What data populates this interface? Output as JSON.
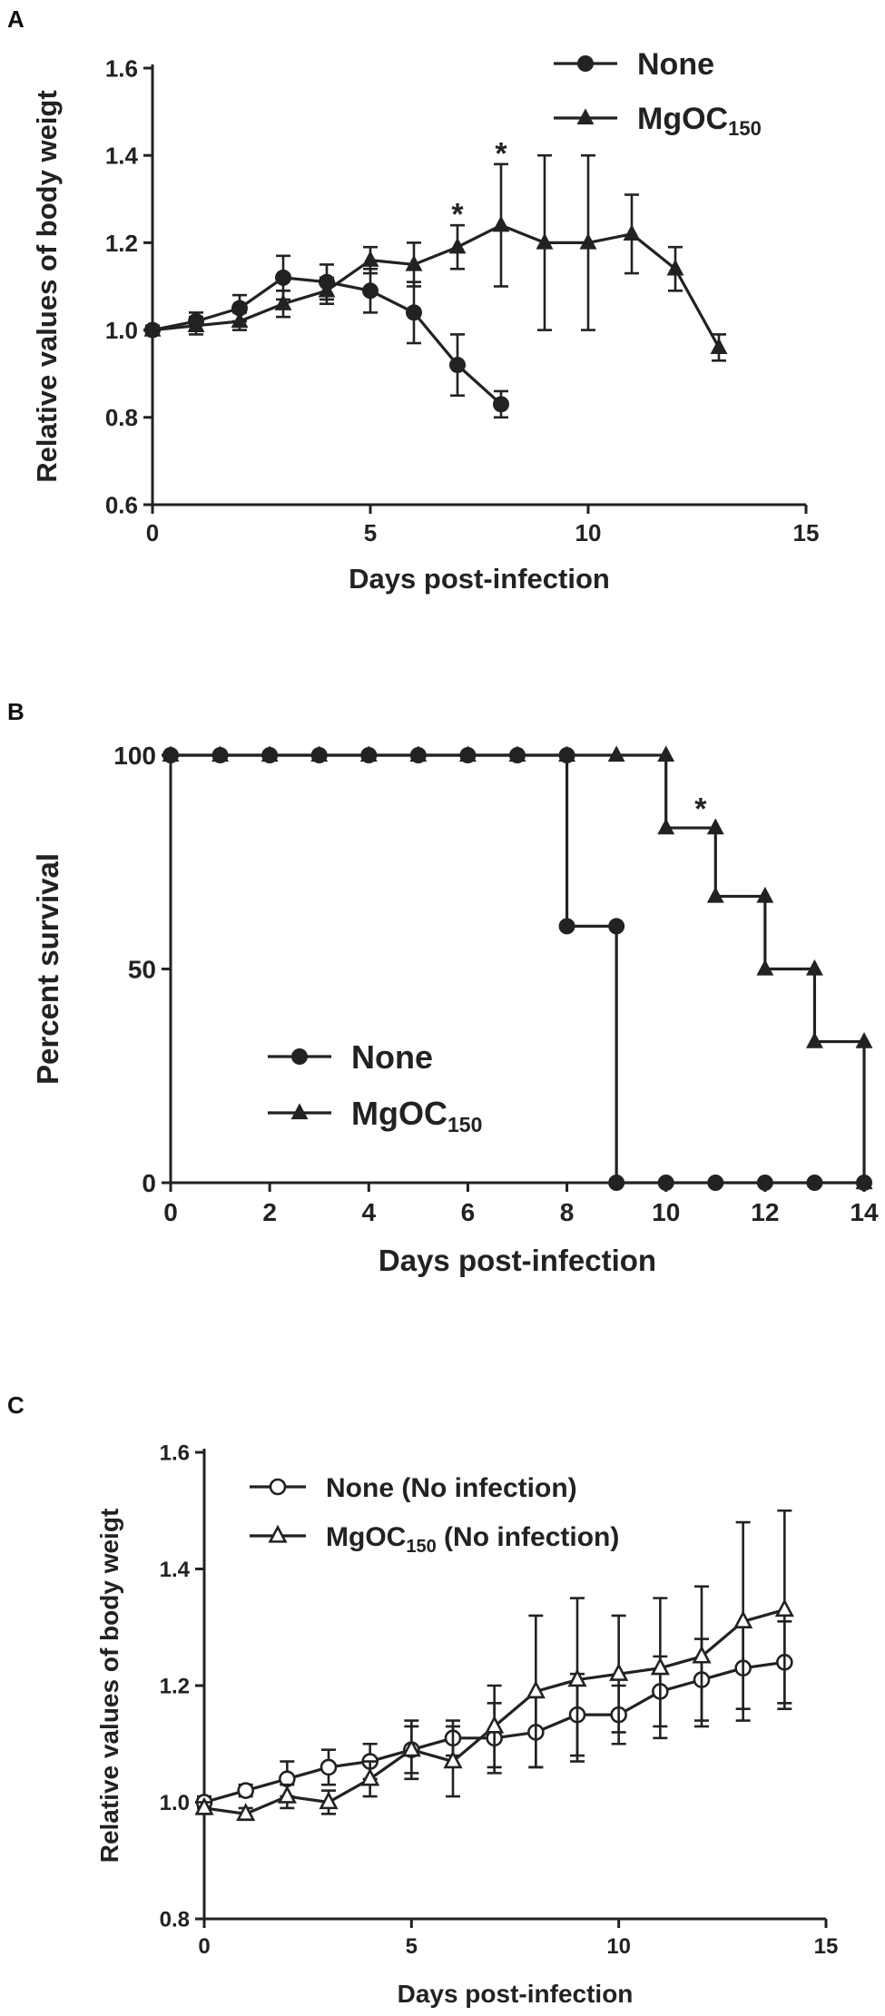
{
  "chart_data": [
    {
      "panel": "A",
      "type": "line",
      "xlabel": "Days post-infection",
      "ylabel": "Relative values of body weigt",
      "xlim": [
        0,
        15
      ],
      "ylim": [
        0.6,
        1.6
      ],
      "xticks": [
        "0",
        "5",
        "10",
        "15"
      ],
      "yticks": [
        "0.6",
        "0.8",
        "1.0",
        "1.2",
        "1.4",
        "1.6"
      ],
      "legend_position": "top-right",
      "annotations": [
        {
          "text": "*",
          "x": 7,
          "y": 1.27
        },
        {
          "text": "*",
          "x": 8,
          "y": 1.41
        }
      ],
      "series": [
        {
          "name": "None",
          "sub": "",
          "marker": "circle-filled",
          "x": [
            0,
            1,
            2,
            3,
            4,
            5,
            6,
            7,
            8
          ],
          "y": [
            1.0,
            1.02,
            1.05,
            1.12,
            1.11,
            1.09,
            1.04,
            0.92,
            0.83
          ],
          "err": [
            0.01,
            0.02,
            0.03,
            0.05,
            0.04,
            0.05,
            0.07,
            0.07,
            0.03
          ]
        },
        {
          "name": "MgOC",
          "sub": "150",
          "marker": "triangle-filled",
          "x": [
            0,
            1,
            2,
            3,
            4,
            5,
            6,
            7,
            8,
            9,
            10,
            11,
            12,
            13
          ],
          "y": [
            1.0,
            1.01,
            1.02,
            1.06,
            1.09,
            1.16,
            1.15,
            1.19,
            1.24,
            1.2,
            1.2,
            1.22,
            1.14,
            0.96
          ],
          "err": [
            0.01,
            0.02,
            0.02,
            0.03,
            0.03,
            0.03,
            0.05,
            0.05,
            0.14,
            0.2,
            0.2,
            0.09,
            0.05,
            0.03
          ]
        }
      ]
    },
    {
      "panel": "B",
      "type": "line",
      "xlabel": "Days post-infection",
      "ylabel": "Percent survival",
      "xlim": [
        0,
        14
      ],
      "ylim": [
        0,
        100
      ],
      "xticks": [
        "0",
        "2",
        "4",
        "6",
        "8",
        "10",
        "12",
        "14"
      ],
      "yticks": [
        "0",
        "50",
        "100"
      ],
      "legend_position": "center-left",
      "annotations": [
        {
          "text": "*",
          "x": 10.7,
          "y": 88
        }
      ],
      "series": [
        {
          "name": "None",
          "sub": "",
          "marker": "circle-filled",
          "step_x": [
            0,
            8,
            9,
            14
          ],
          "step_y": [
            100,
            60,
            0,
            0
          ],
          "x": [
            0,
            1,
            2,
            3,
            4,
            5,
            6,
            7,
            8,
            8,
            9,
            9,
            10,
            11,
            12,
            13,
            14
          ],
          "y": [
            100,
            100,
            100,
            100,
            100,
            100,
            100,
            100,
            100,
            60,
            60,
            0,
            0,
            0,
            0,
            0,
            0
          ]
        },
        {
          "name": "MgOC",
          "sub": "150",
          "marker": "triangle-filled",
          "step_x": [
            0,
            10,
            11,
            12,
            13,
            14
          ],
          "step_y": [
            100,
            83,
            67,
            50,
            33,
            0
          ],
          "x": [
            0,
            1,
            2,
            3,
            4,
            5,
            6,
            7,
            8,
            9,
            10,
            10,
            11,
            11,
            12,
            12,
            13,
            13,
            14,
            14
          ],
          "y": [
            100,
            100,
            100,
            100,
            100,
            100,
            100,
            100,
            100,
            100,
            100,
            83,
            83,
            67,
            67,
            50,
            50,
            33,
            33,
            0
          ]
        }
      ]
    },
    {
      "panel": "C",
      "type": "line",
      "xlabel": "Days post-infection",
      "ylabel": "Relative values of body weigt",
      "xlim": [
        0,
        15
      ],
      "ylim": [
        0.8,
        1.6
      ],
      "xticks": [
        "0",
        "5",
        "10",
        "15"
      ],
      "yticks": [
        "0.8",
        "1.0",
        "1.2",
        "1.4",
        "1.6"
      ],
      "legend_position": "top-left",
      "annotations": [],
      "series": [
        {
          "name": "None",
          "sub": "",
          "suffix": " (No infection)",
          "marker": "circle-open",
          "x": [
            0,
            1,
            2,
            3,
            4,
            5,
            6,
            7,
            8,
            9,
            10,
            11,
            12,
            13,
            14
          ],
          "y": [
            1.0,
            1.02,
            1.04,
            1.06,
            1.07,
            1.09,
            1.11,
            1.11,
            1.12,
            1.15,
            1.15,
            1.19,
            1.21,
            1.23,
            1.24
          ],
          "err": [
            0.01,
            0.01,
            0.03,
            0.03,
            0.03,
            0.04,
            0.03,
            0.06,
            0.06,
            0.07,
            0.05,
            0.06,
            0.07,
            0.07,
            0.07
          ]
        },
        {
          "name": "MgOC",
          "sub": "150",
          "suffix": " (No infection)",
          "marker": "triangle-open",
          "x": [
            0,
            1,
            2,
            3,
            4,
            5,
            6,
            7,
            8,
            9,
            10,
            11,
            12,
            13,
            14
          ],
          "y": [
            0.99,
            0.98,
            1.01,
            1.0,
            1.04,
            1.09,
            1.07,
            1.13,
            1.19,
            1.21,
            1.22,
            1.23,
            1.25,
            1.31,
            1.33
          ],
          "err": [
            0.01,
            0.01,
            0.02,
            0.02,
            0.03,
            0.05,
            0.06,
            0.07,
            0.13,
            0.14,
            0.1,
            0.12,
            0.12,
            0.17,
            0.17
          ]
        }
      ]
    }
  ]
}
